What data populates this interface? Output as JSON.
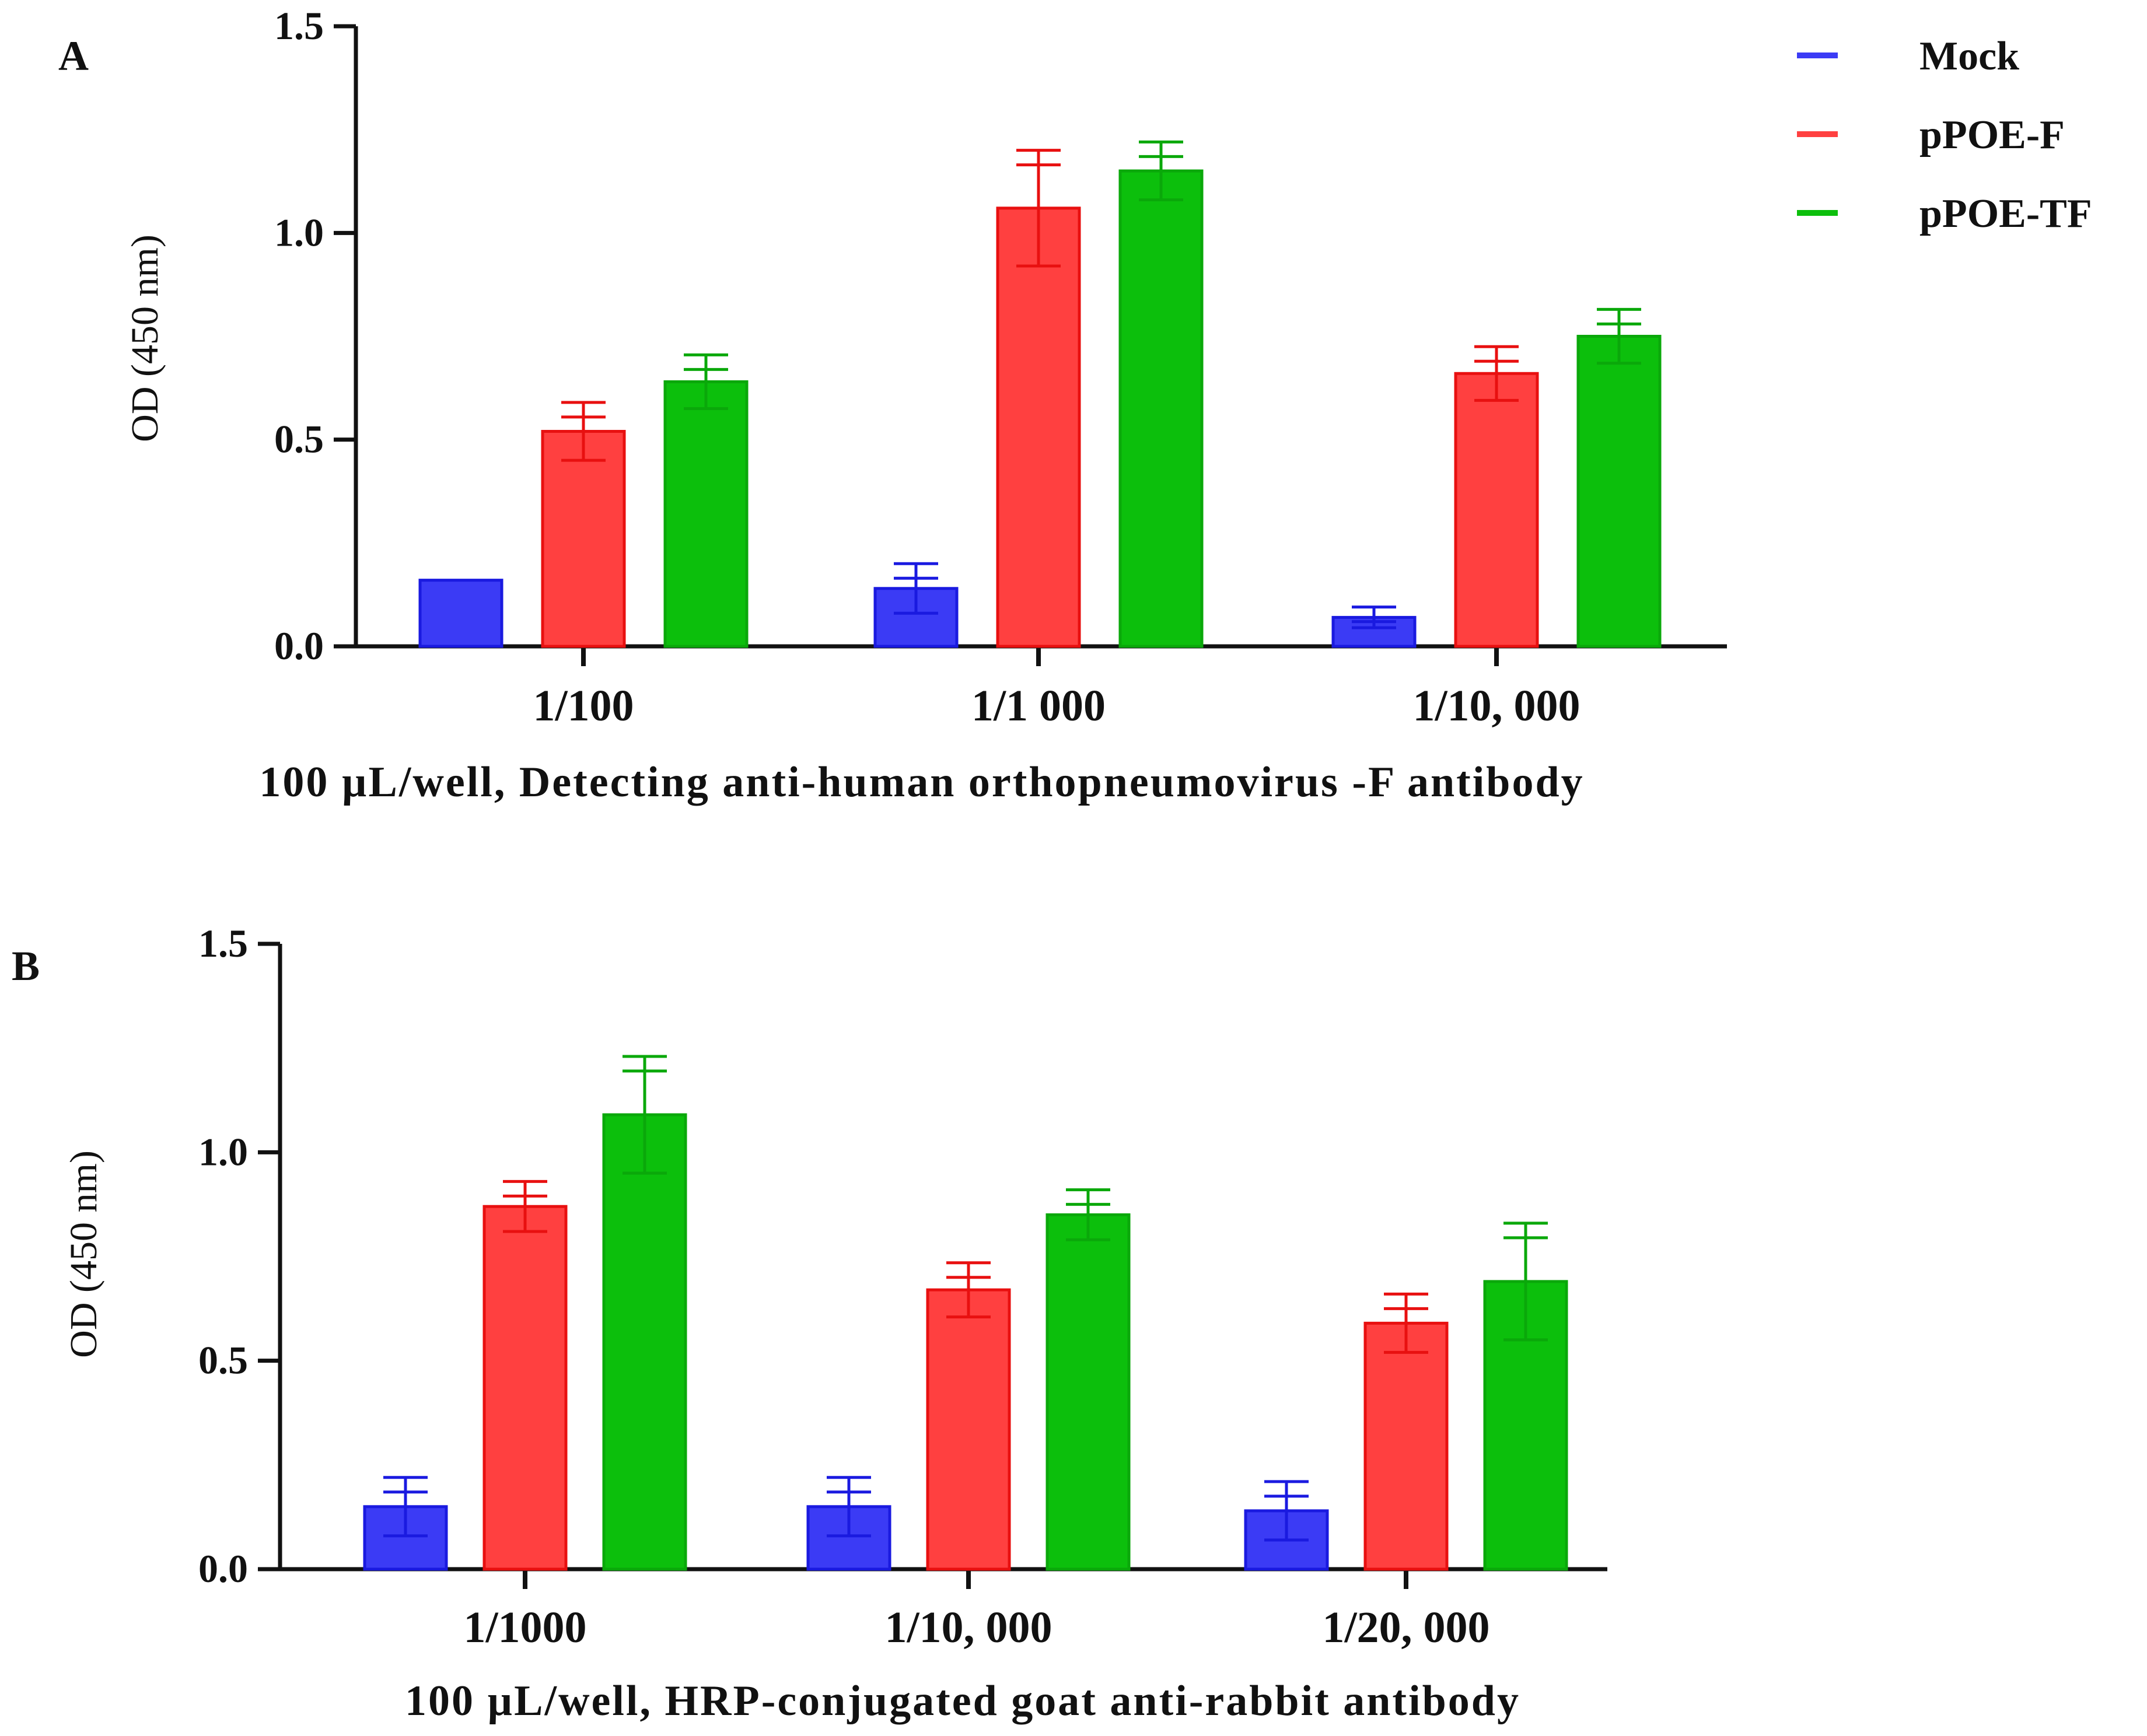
{
  "chart_data": [
    {
      "panel": "A",
      "type": "bar",
      "categories": [
        "1/100",
        "1/1 000",
        "1/10, 000"
      ],
      "series": [
        {
          "name": "Mock",
          "values": [
            0.16,
            0.14,
            0.07
          ],
          "errors": [
            0.0,
            0.06,
            0.025
          ]
        },
        {
          "name": "pPOE-F",
          "values": [
            0.52,
            1.06,
            0.66
          ],
          "errors": [
            0.07,
            0.14,
            0.065
          ]
        },
        {
          "name": "pPOE-TF",
          "values": [
            0.64,
            1.15,
            0.75
          ],
          "errors": [
            0.065,
            0.07,
            0.065
          ]
        }
      ],
      "xlabel": "100 µL/well, Detecting anti-human orthopneumovirus -F antibody",
      "ylabel": "OD (450 nm)",
      "ylim": [
        0,
        1.5
      ],
      "yticks": [
        "0.0",
        "0.5",
        "1.0",
        "1.5"
      ],
      "legend": "top-right"
    },
    {
      "panel": "B",
      "type": "bar",
      "categories": [
        "1/1000",
        "1/10, 000",
        "1/20, 000"
      ],
      "series": [
        {
          "name": "Mock",
          "values": [
            0.15,
            0.15,
            0.14
          ],
          "errors": [
            0.07,
            0.07,
            0.07
          ]
        },
        {
          "name": "pPOE-F",
          "values": [
            0.87,
            0.67,
            0.59
          ],
          "errors": [
            0.06,
            0.065,
            0.07
          ]
        },
        {
          "name": "pPOE-TF",
          "values": [
            1.09,
            0.85,
            0.69
          ],
          "errors": [
            0.14,
            0.06,
            0.14
          ]
        }
      ],
      "xlabel": "100 µL/well, HRP-conjugated goat anti-rabbit antibody",
      "ylabel": "OD (450 nm)",
      "ylim": [
        0,
        1.5
      ],
      "yticks": [
        "0.0",
        "0.5",
        "1.0",
        "1.5"
      ]
    }
  ],
  "colors": {
    "Mock": "#3b3bf5",
    "pPOE-F": "#ff4040",
    "pPOE-TF": "#0cbf0c",
    "Mock_edge": "#1a1ae0",
    "pPOE-F_edge": "#e81010",
    "pPOE-TF_edge": "#0aa80a"
  }
}
